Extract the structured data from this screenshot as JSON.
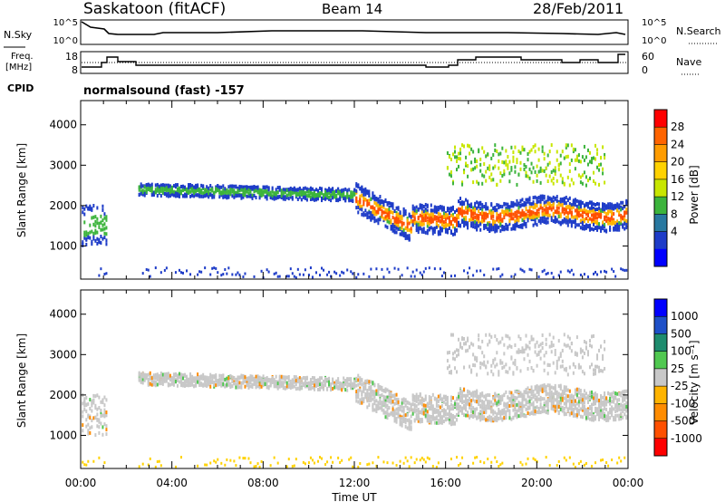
{
  "header": {
    "station": "Saskatoon (fitACF)",
    "beam": "Beam 14",
    "date": "28/Feb/2011"
  },
  "top_panels": {
    "nsky_label": "N.Sky",
    "nsky_ticks": [
      "10^5",
      "10^0"
    ],
    "nsearch_label": "N.Search",
    "nsearch_ticks": [
      "10^5",
      "10^0"
    ],
    "freq_label": "Freq.",
    "freq_unit": "[MHz]",
    "freq_ticks": [
      "18",
      "8"
    ],
    "nave_label": "Nave",
    "nave_ticks": [
      "60",
      "0"
    ],
    "cpid_label": "CPID",
    "cpid_value": "normalsound (fast) -157"
  },
  "chart_data": [
    {
      "type": "heatmap",
      "title": "",
      "xlabel": "Time UT",
      "ylabel": "Slant Range [km]",
      "x_ticks": [
        "00:00",
        "04:00",
        "08:00",
        "12:00",
        "16:00",
        "20:00",
        "00:00"
      ],
      "y_ticks": [
        "1000",
        "2000",
        "3000",
        "4000"
      ],
      "xlim_hours": [
        0,
        24
      ],
      "ylim_km": [
        180,
        4600
      ],
      "colorbar": {
        "label": "Power [dB]",
        "labels": [
          "28",
          "24",
          "20",
          "16",
          "12",
          "8",
          "4"
        ],
        "colors": [
          "#ff0000",
          "#ff6400",
          "#ff9c00",
          "#ffd200",
          "#c8e600",
          "#3cb43c",
          "#2878a0",
          "#1e3cc8",
          "#0000ff"
        ]
      },
      "description_bands": [
        {
          "hours": [
            0.1,
            1.0
          ],
          "range_km": [
            900,
            2000
          ],
          "level": "medium"
        },
        {
          "hours": [
            2.5,
            12.0
          ],
          "range_km": [
            2100,
            2600
          ],
          "level": "low"
        },
        {
          "hours": [
            12.0,
            14.5
          ],
          "range_km": [
            1300,
            2300
          ],
          "level": "high"
        },
        {
          "hours": [
            14.5,
            23.5
          ],
          "range_km": [
            1500,
            2200
          ],
          "level": "high"
        },
        {
          "hours": [
            16.0,
            23.0
          ],
          "range_km": [
            2400,
            3500
          ],
          "level": "medium"
        }
      ]
    },
    {
      "type": "heatmap",
      "title": "",
      "xlabel": "Time UT",
      "ylabel": "Slant Range [km]",
      "x_ticks": [
        "00:00",
        "04:00",
        "08:00",
        "12:00",
        "16:00",
        "20:00",
        "00:00"
      ],
      "y_ticks": [
        "1000",
        "2000",
        "3000",
        "4000"
      ],
      "xlim_hours": [
        0,
        24
      ],
      "ylim_km": [
        180,
        4600
      ],
      "colorbar": {
        "label": "Velocity [m s⁻¹]",
        "labels": [
          "1000",
          "500",
          "100",
          "25",
          "-25",
          "-100",
          "-500",
          "-1000"
        ],
        "colors": [
          "#0000ff",
          "#1e50c8",
          "#1e8c6e",
          "#50c850",
          "#c8c8c8",
          "#ffb400",
          "#ff8c00",
          "#ff5000",
          "#ff0000"
        ]
      }
    }
  ]
}
